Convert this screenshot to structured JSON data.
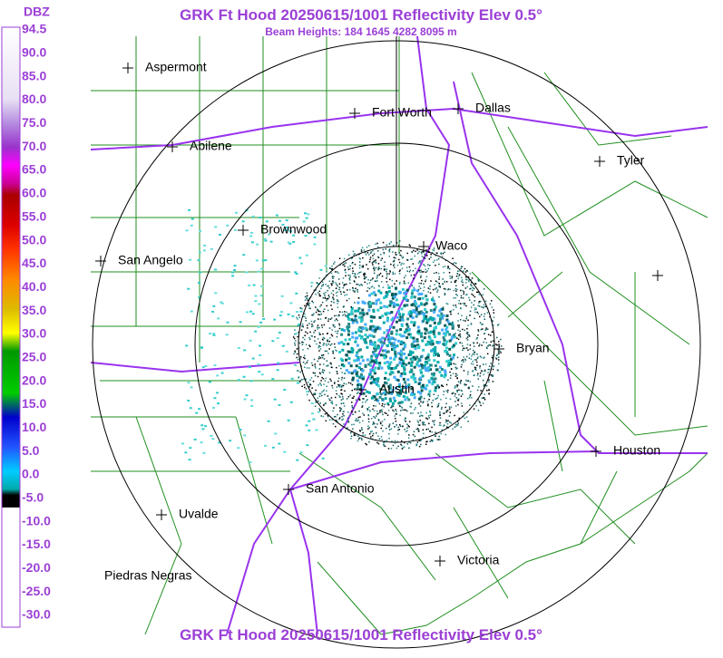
{
  "title": "GRK Ft Hood 20250615/1001 Reflectivity Elev 0.5°",
  "subtitle": "Beam Heights: 184 1645 4282 8095 m",
  "footer": "GRK Ft Hood 20250615/1001 Reflectivity Elev 0.5°",
  "scale": {
    "unit": "DBZ",
    "labels": [
      "94.5",
      "90.0",
      "85.0",
      "80.0",
      "75.0",
      "70.0",
      "65.0",
      "60.0",
      "55.0",
      "50.0",
      "45.0",
      "40.0",
      "35.0",
      "30.0",
      "25.0",
      "20.0",
      "15.0",
      "10.0",
      "5.0",
      "0.0",
      "-5.0",
      "-10.0",
      "-15.0",
      "-20.0",
      "-25.0",
      "-30.0"
    ]
  },
  "cities": [
    "Aspermont",
    "Abilene",
    "Fort Worth",
    "Dallas",
    "Tyler",
    "Brownwood",
    "Waco",
    "San Angelo",
    "Bryan",
    "Austin",
    "Houston",
    "San Antonio",
    "Uvalde",
    "Victoria",
    "Piedras Negras"
  ]
}
